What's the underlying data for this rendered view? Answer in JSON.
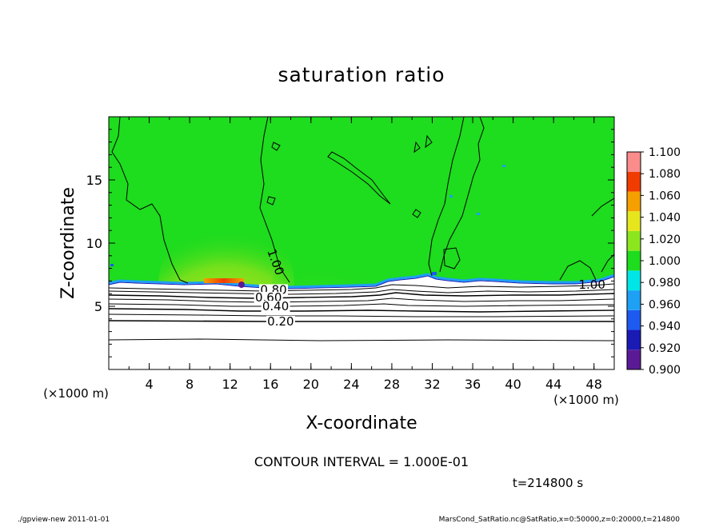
{
  "chart_data": {
    "type": "heatmap",
    "title": "saturation ratio",
    "xlabel": "X-coordinate",
    "ylabel": "Z-coordinate",
    "x_unit": "(×1000 m)",
    "x_unit_right": "(×1000 m)",
    "xlim": [
      0,
      50
    ],
    "ylim": [
      0,
      20
    ],
    "x_ticks": [
      4,
      8,
      12,
      16,
      20,
      24,
      28,
      32,
      36,
      40,
      44,
      48
    ],
    "y_ticks": [
      5,
      10,
      15
    ],
    "x_minor_step": 2,
    "y_minor_step": 1,
    "colorbar": {
      "levels": [
        0.9,
        0.92,
        0.94,
        0.96,
        0.98,
        1.0,
        1.02,
        1.04,
        1.06,
        1.08,
        1.1
      ],
      "labels": [
        "1.100",
        "1.080",
        "1.060",
        "1.040",
        "1.020",
        "1.000",
        "0.980",
        "0.960",
        "0.940",
        "0.920",
        "0.900"
      ],
      "colors": [
        "#5a1a96",
        "#1a1ab4",
        "#1e5af0",
        "#1ea0f5",
        "#00e6e6",
        "#1edc1e",
        "#8ce61e",
        "#e6e61e",
        "#f5a000",
        "#f03c00",
        "#fa8c8c"
      ]
    },
    "contour_labels": [
      {
        "text": "1.00",
        "x": 16.5,
        "z": 8.5
      },
      {
        "text": "0.80",
        "x": 16.3,
        "z": 6.3
      },
      {
        "text": "0.60",
        "x": 15.8,
        "z": 5.7
      },
      {
        "text": "0.40",
        "x": 16.5,
        "z": 5.0
      },
      {
        "text": "0.20",
        "x": 17.0,
        "z": 3.8
      },
      {
        "text": "1.00",
        "x": 47.8,
        "z": 6.7
      }
    ],
    "contour_interval": "CONTOUR INTERVAL = 1.000E-01",
    "time": "t=214800 s",
    "footer_left": "./gpview-new 2011-01-01",
    "footer_right": "MarsCond_SatRatio.nc@SatRatio,x=0:50000,z=0:20000,t=214800"
  }
}
